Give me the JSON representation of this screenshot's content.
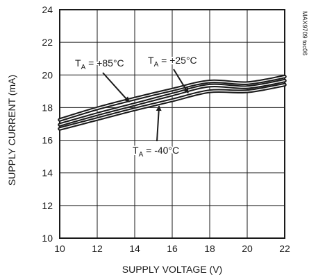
{
  "chart_data": {
    "type": "line",
    "xlabel": "SUPPLY VOLTAGE (V)",
    "ylabel": "SUPPLY CURRENT (mA)",
    "xlim": [
      10,
      22
    ],
    "ylim": [
      10,
      24
    ],
    "xticks": [
      10,
      12,
      14,
      16,
      18,
      20,
      22
    ],
    "yticks": [
      10,
      12,
      14,
      16,
      18,
      20,
      22,
      24
    ],
    "grid": true,
    "figure_code": "MAX9709 toc06",
    "series": [
      {
        "name": "TA = +85°C",
        "x": [
          10,
          12,
          14,
          16,
          18,
          20,
          22
        ],
        "values": [
          17.25,
          17.95,
          18.55,
          19.1,
          19.6,
          19.5,
          19.9
        ]
      },
      {
        "name": "TA = +25°C",
        "x": [
          10,
          12,
          14,
          16,
          18,
          20,
          22
        ],
        "values": [
          16.95,
          17.6,
          18.2,
          18.8,
          19.35,
          19.25,
          19.65
        ]
      },
      {
        "name": "TA = -40°C",
        "x": [
          10,
          12,
          14,
          16,
          18,
          20,
          22
        ],
        "values": [
          16.7,
          17.3,
          17.9,
          18.45,
          19.0,
          19.0,
          19.4
        ]
      }
    ],
    "annotations": [
      {
        "main": "T",
        "sub": "A",
        "rest": " = +85°C",
        "point": [
          13.7,
          18.35
        ]
      },
      {
        "main": "T",
        "sub": "A",
        "rest": " = +25°C",
        "point": [
          16.85,
          18.9
        ]
      },
      {
        "main": "T",
        "sub": "A",
        "rest": " = -40°C",
        "point": [
          15.3,
          18.1
        ]
      }
    ]
  }
}
